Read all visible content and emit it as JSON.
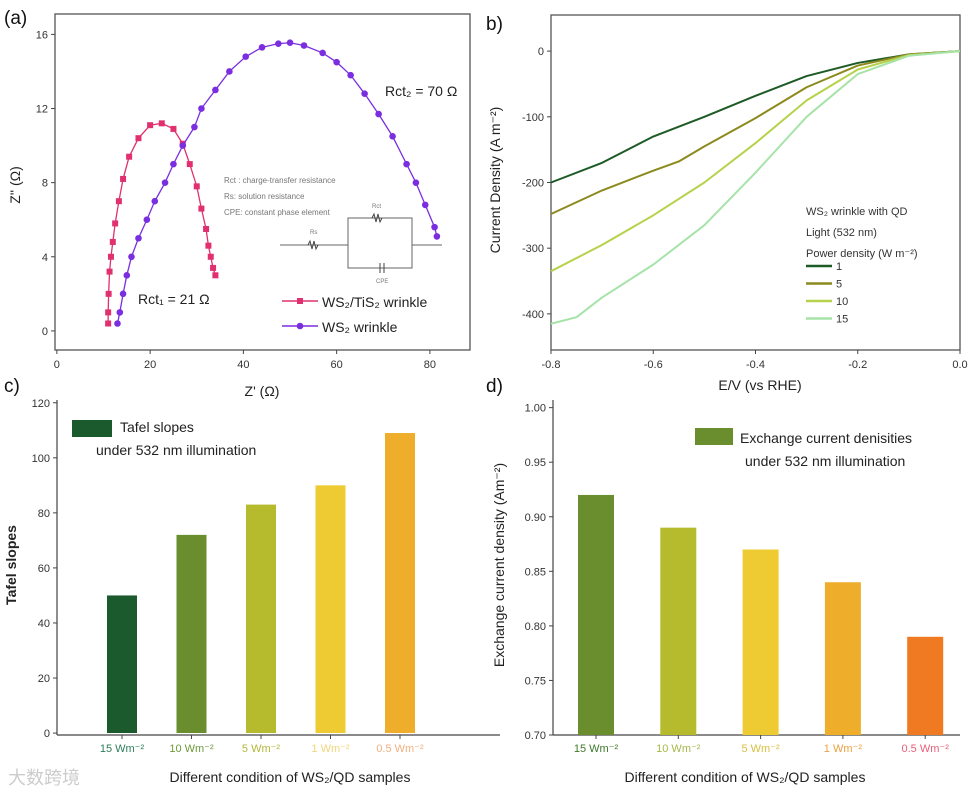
{
  "watermark": "大数跨境",
  "chart_data": [
    {
      "panel": "(a)",
      "type": "scatter",
      "xlabel": "Z' (Ω)",
      "ylabel": "Z'' (Ω)",
      "xlim": [
        -0.4,
        88.6
      ],
      "ylim": [
        -1.03,
        17.1
      ],
      "xticks": [
        0,
        20,
        40,
        60,
        80
      ],
      "yticks": [
        0,
        4,
        8,
        12,
        16
      ],
      "annotations": {
        "rct2": "Rct₂ = 70 Ω",
        "rct1": "Rct₁ = 21 Ω",
        "note1": "Rct : charge-transfer resistance",
        "note2": "Rs: solution resistance",
        "note3": "CPE: constant phase element",
        "circuit_rs": "Rs",
        "circuit_rct": "Rct",
        "circuit_cpe": "CPE"
      },
      "series": [
        {
          "name": "WS₂/TiS₂ wrinkle",
          "color": "#e0306f",
          "marker": "square",
          "x": [
            11,
            11,
            11.1,
            11.3,
            11.6,
            12,
            12.5,
            13.3,
            14.2,
            15.5,
            17.5,
            20,
            22.5,
            25,
            27,
            28.5,
            30,
            31,
            32,
            32.5,
            33,
            33.5,
            34
          ],
          "y": [
            0.4,
            1,
            2,
            3.2,
            4,
            4.8,
            5.8,
            7,
            8.2,
            9.4,
            10.4,
            11.1,
            11.2,
            10.9,
            10.1,
            9,
            7.8,
            6.6,
            5.5,
            4.6,
            4,
            3.4,
            3.0
          ]
        },
        {
          "name": "WS₂ wrinkle",
          "color": "#7a2ee0",
          "marker": "circle",
          "x": [
            13,
            13.5,
            14.2,
            15,
            16,
            17.5,
            19.3,
            21,
            23.2,
            25,
            27,
            29.5,
            31,
            34,
            37,
            40.5,
            44,
            47.5,
            50,
            53,
            57,
            60,
            63,
            66,
            69,
            72,
            75,
            77,
            79,
            81,
            81.5
          ],
          "y": [
            0.4,
            1,
            2,
            3,
            4,
            5,
            6,
            7,
            8,
            9,
            10,
            11,
            12,
            13,
            14,
            14.8,
            15.3,
            15.5,
            15.55,
            15.4,
            15,
            14.5,
            13.8,
            12.8,
            11.7,
            10.5,
            9,
            8,
            6.8,
            5.6,
            5.1
          ]
        }
      ]
    },
    {
      "panel": "b)",
      "type": "line",
      "xlabel": "E/V (vs RHE)",
      "ylabel": "Current Density (A m⁻²)",
      "xlim": [
        -0.8,
        0
      ],
      "ylim": [
        -455,
        55
      ],
      "xticks": [
        -0.8,
        -0.6,
        -0.4,
        -0.2,
        0.0
      ],
      "xtick_labels": [
        "-0.8",
        "-0.6",
        "-0.4",
        "-0.2",
        "0.0"
      ],
      "yticks": [
        0,
        -100,
        -200,
        -300,
        -400
      ],
      "legend_title": [
        "WS₂ wrinkle with QD",
        "Light (532 nm)",
        "Power density (W m⁻²)"
      ],
      "legend_placement": "bottom-right",
      "series": [
        {
          "name": "1",
          "color": "#1e5a26",
          "x": [
            -0.8,
            -0.7,
            -0.6,
            -0.5,
            -0.4,
            -0.3,
            -0.2,
            -0.1,
            0
          ],
          "y": [
            -200,
            -170,
            -130,
            -100,
            -68,
            -38,
            -18,
            -5,
            0
          ]
        },
        {
          "name": "5",
          "color": "#8c8a1e",
          "x": [
            -0.8,
            -0.7,
            -0.6,
            -0.55,
            -0.5,
            -0.4,
            -0.3,
            -0.2,
            -0.1,
            0
          ],
          "y": [
            -248,
            -212,
            -182,
            -168,
            -145,
            -102,
            -55,
            -22,
            -5,
            0
          ]
        },
        {
          "name": "10",
          "color": "#b5d24a",
          "x": [
            -0.8,
            -0.7,
            -0.6,
            -0.5,
            -0.4,
            -0.3,
            -0.2,
            -0.1,
            0
          ],
          "y": [
            -335,
            -295,
            -250,
            -200,
            -140,
            -75,
            -28,
            -6,
            0
          ]
        },
        {
          "name": "15",
          "color": "#a6e3a8",
          "x": [
            -0.8,
            -0.75,
            -0.7,
            -0.6,
            -0.5,
            -0.4,
            -0.3,
            -0.2,
            -0.1,
            0
          ],
          "y": [
            -415,
            -405,
            -375,
            -325,
            -265,
            -185,
            -100,
            -35,
            -7,
            0
          ]
        }
      ]
    },
    {
      "panel": "c)",
      "type": "bar",
      "xlabel": "Different condition of WS₂/QD samples",
      "ylabel": "Tafel slopes",
      "ylim": [
        -0.7,
        121
      ],
      "yticks": [
        0,
        20,
        40,
        60,
        80,
        100,
        120
      ],
      "legend": [
        "Tafel slopes",
        "under 532 nm illumination"
      ],
      "legend_color": "#1b5a2c",
      "categories": [
        "15 Wm⁻²",
        "10 Wm⁻²",
        "5 Wm⁻²",
        "1 Wm⁻²",
        "0.5 Wm⁻²"
      ],
      "category_colors": [
        "#2e7d5a",
        "#6d9a3a",
        "#b2b83a",
        "#f0d77a",
        "#f0b080"
      ],
      "values": [
        50,
        72,
        83,
        90,
        109
      ],
      "bar_colors": [
        "#1b5a2c",
        "#6a8e2e",
        "#b5bb2c",
        "#efcb33",
        "#eeae2c"
      ]
    },
    {
      "panel": "d)",
      "type": "bar",
      "xlabel": "Different condition of WS₂/QD samples",
      "ylabel": "Exchange current density (Am⁻²)",
      "ylim": [
        0.7,
        1.007
      ],
      "yticks": [
        0.7,
        0.75,
        0.8,
        0.85,
        0.9,
        0.95,
        1.0
      ],
      "ytick_labels": [
        "0.70",
        "0.75",
        "0.80",
        "0.85",
        "0.90",
        "0.95",
        "1.00"
      ],
      "legend": [
        "Exchange current denisities",
        "under 532 nm illumination"
      ],
      "legend_color": "#6a8e2e",
      "categories": [
        "15 Wm⁻²",
        "10 Wm⁻²",
        "5 Wm⁻²",
        "1 Wm⁻²",
        "0.5 Wm⁻²"
      ],
      "category_colors": [
        "#3e7a2a",
        "#a8b84a",
        "#d8c040",
        "#eba040",
        "#e8607a"
      ],
      "values": [
        0.92,
        0.89,
        0.87,
        0.84,
        0.79
      ],
      "bar_colors": [
        "#6a8e2e",
        "#b5bb2c",
        "#efcb33",
        "#eeae2c",
        "#f07a22"
      ]
    }
  ]
}
